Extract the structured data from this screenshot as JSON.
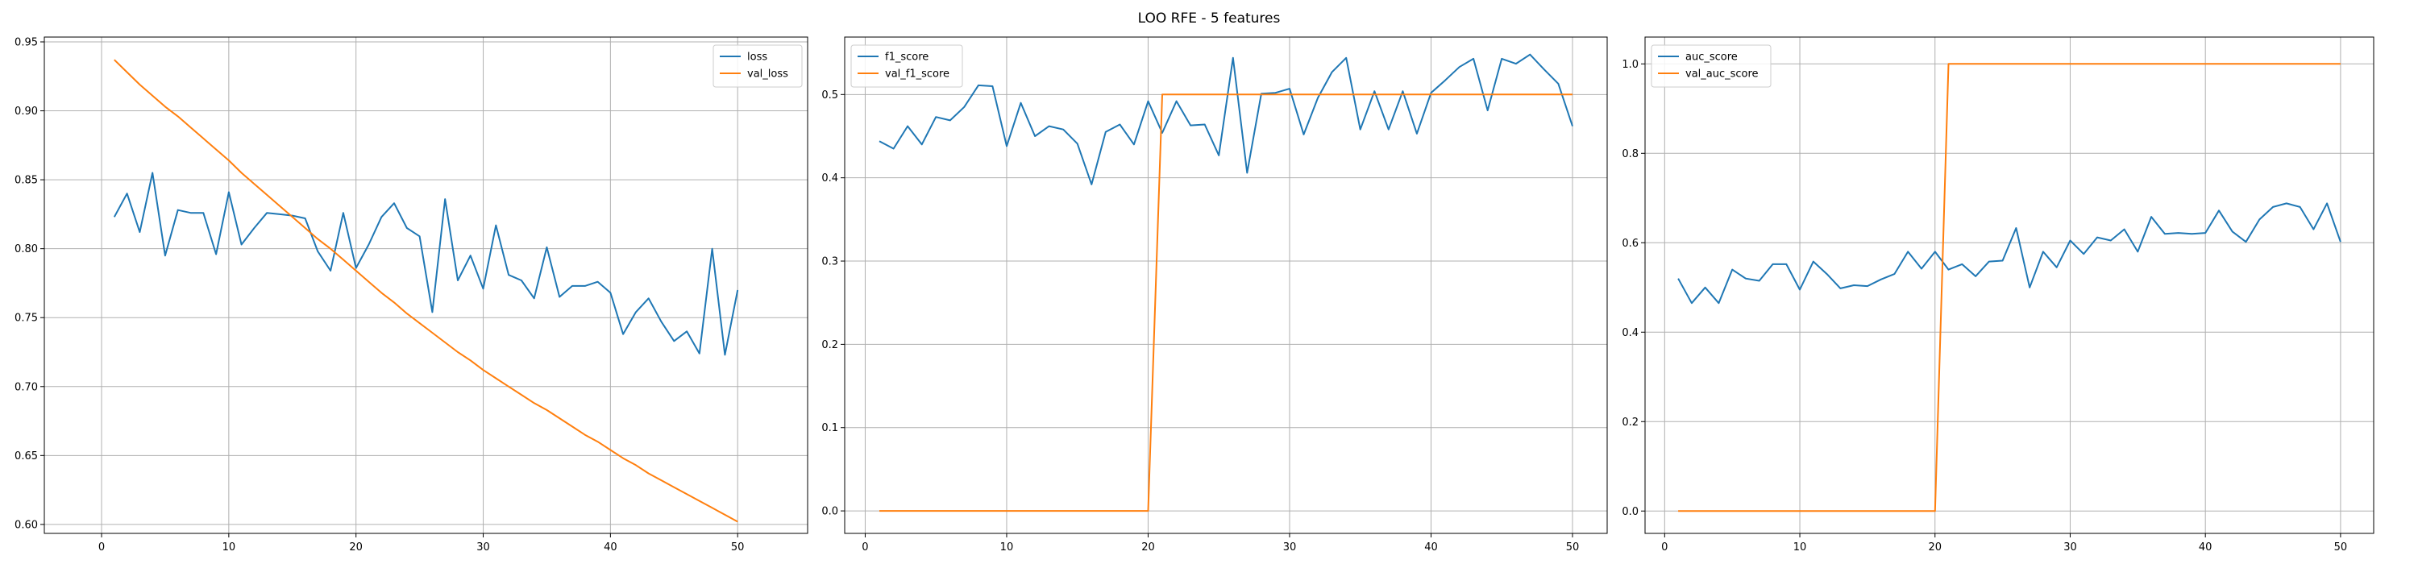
{
  "figure": {
    "title": "LOO RFE - 5 features",
    "colors": {
      "series1": "#1f77b4",
      "series2": "#ff7f0e"
    }
  },
  "chart_data": [
    {
      "type": "line",
      "x": [
        1,
        2,
        3,
        4,
        5,
        6,
        7,
        8,
        9,
        10,
        11,
        12,
        13,
        14,
        15,
        16,
        17,
        18,
        19,
        20,
        21,
        22,
        23,
        24,
        25,
        26,
        27,
        28,
        29,
        30,
        31,
        32,
        33,
        34,
        35,
        36,
        37,
        38,
        39,
        40,
        41,
        42,
        43,
        44,
        45,
        46,
        47,
        48,
        49,
        50
      ],
      "xlim": [
        -4.5,
        55.5
      ],
      "xticks": [
        0,
        10,
        20,
        30,
        40,
        50
      ],
      "ylim": [
        0.5935,
        0.9535
      ],
      "yticks": [
        0.6,
        0.65,
        0.7,
        0.75,
        0.8,
        0.85,
        0.9,
        0.95
      ],
      "ytick_labels": [
        "0.60",
        "0.65",
        "0.70",
        "0.75",
        "0.80",
        "0.85",
        "0.90",
        "0.95"
      ],
      "grid": true,
      "legend": "top-right",
      "series": [
        {
          "name": "loss",
          "color": "#1f77b4",
          "values": [
            0.823,
            0.84,
            0.812,
            0.855,
            0.795,
            0.828,
            0.826,
            0.826,
            0.796,
            0.841,
            0.803,
            0.815,
            0.826,
            0.825,
            0.824,
            0.822,
            0.798,
            0.784,
            0.826,
            0.786,
            0.803,
            0.823,
            0.833,
            0.815,
            0.809,
            0.754,
            0.836,
            0.777,
            0.795,
            0.771,
            0.817,
            0.781,
            0.777,
            0.764,
            0.801,
            0.765,
            0.773,
            0.773,
            0.776,
            0.768,
            0.738,
            0.754,
            0.764,
            0.747,
            0.733,
            0.74,
            0.724,
            0.8,
            0.723,
            0.77
          ]
        },
        {
          "name": "val_loss",
          "color": "#ff7f0e",
          "values": [
            0.937,
            0.928,
            0.919,
            0.911,
            0.903,
            0.896,
            0.888,
            0.88,
            0.872,
            0.864,
            0.855,
            0.847,
            0.839,
            0.831,
            0.823,
            0.815,
            0.807,
            0.8,
            0.792,
            0.784,
            0.776,
            0.768,
            0.761,
            0.753,
            0.746,
            0.739,
            0.732,
            0.725,
            0.719,
            0.712,
            0.706,
            0.7,
            0.694,
            0.688,
            0.683,
            0.677,
            0.671,
            0.665,
            0.66,
            0.654,
            0.648,
            0.643,
            0.637,
            0.632,
            0.627,
            0.622,
            0.617,
            0.612,
            0.607,
            0.602
          ]
        }
      ]
    },
    {
      "type": "line",
      "x": [
        1,
        2,
        3,
        4,
        5,
        6,
        7,
        8,
        9,
        10,
        11,
        12,
        13,
        14,
        15,
        16,
        17,
        18,
        19,
        20,
        21,
        22,
        23,
        24,
        25,
        26,
        27,
        28,
        29,
        30,
        31,
        32,
        33,
        34,
        35,
        36,
        37,
        38,
        39,
        40,
        41,
        42,
        43,
        44,
        45,
        46,
        47,
        48,
        49,
        50
      ],
      "xlim": [
        -1.45,
        52.45
      ],
      "xticks": [
        0,
        10,
        20,
        30,
        40,
        50
      ],
      "ylim": [
        -0.027,
        0.569
      ],
      "yticks": [
        0.0,
        0.1,
        0.2,
        0.3,
        0.4,
        0.5
      ],
      "ytick_labels": [
        "0.0",
        "0.1",
        "0.2",
        "0.3",
        "0.4",
        "0.5"
      ],
      "grid": true,
      "legend": "top-left",
      "series": [
        {
          "name": "f1_score",
          "color": "#1f77b4",
          "values": [
            0.444,
            0.435,
            0.462,
            0.44,
            0.473,
            0.469,
            0.485,
            0.511,
            0.51,
            0.438,
            0.49,
            0.45,
            0.462,
            0.458,
            0.441,
            0.392,
            0.455,
            0.464,
            0.44,
            0.492,
            0.454,
            0.492,
            0.463,
            0.464,
            0.427,
            0.544,
            0.406,
            0.501,
            0.502,
            0.507,
            0.452,
            0.496,
            0.527,
            0.544,
            0.458,
            0.504,
            0.458,
            0.504,
            0.453,
            0.502,
            0.517,
            0.533,
            0.543,
            0.481,
            0.543,
            0.537,
            0.548,
            0.53,
            0.513,
            0.462
          ]
        },
        {
          "name": "val_f1_score",
          "color": "#ff7f0e",
          "values": [
            0.0,
            0.0,
            0.0,
            0.0,
            0.0,
            0.0,
            0.0,
            0.0,
            0.0,
            0.0,
            0.0,
            0.0,
            0.0,
            0.0,
            0.0,
            0.0,
            0.0,
            0.0,
            0.0,
            0.0,
            0.5,
            0.5,
            0.5,
            0.5,
            0.5,
            0.5,
            0.5,
            0.5,
            0.5,
            0.5,
            0.5,
            0.5,
            0.5,
            0.5,
            0.5,
            0.5,
            0.5,
            0.5,
            0.5,
            0.5,
            0.5,
            0.5,
            0.5,
            0.5,
            0.5,
            0.5,
            0.5,
            0.5,
            0.5,
            0.5
          ]
        }
      ]
    },
    {
      "type": "line",
      "x": [
        1,
        2,
        3,
        4,
        5,
        6,
        7,
        8,
        9,
        10,
        11,
        12,
        13,
        14,
        15,
        16,
        17,
        18,
        19,
        20,
        21,
        22,
        23,
        24,
        25,
        26,
        27,
        28,
        29,
        30,
        31,
        32,
        33,
        34,
        35,
        36,
        37,
        38,
        39,
        40,
        41,
        42,
        43,
        44,
        45,
        46,
        47,
        48,
        49,
        50
      ],
      "xlim": [
        -1.45,
        52.45
      ],
      "xticks": [
        0,
        10,
        20,
        30,
        40,
        50
      ],
      "ylim": [
        -0.05,
        1.06
      ],
      "yticks": [
        0.0,
        0.2,
        0.4,
        0.6,
        0.8,
        1.0
      ],
      "ytick_labels": [
        "0.0",
        "0.2",
        "0.4",
        "0.6",
        "0.8",
        "1.0"
      ],
      "grid": true,
      "legend": "top-left",
      "series": [
        {
          "name": "auc_score",
          "color": "#1f77b4",
          "values": [
            0.52,
            0.465,
            0.5,
            0.465,
            0.54,
            0.52,
            0.515,
            0.552,
            0.552,
            0.495,
            0.558,
            0.53,
            0.498,
            0.505,
            0.503,
            0.518,
            0.53,
            0.58,
            0.542,
            0.58,
            0.54,
            0.552,
            0.525,
            0.558,
            0.56,
            0.633,
            0.5,
            0.58,
            0.545,
            0.605,
            0.575,
            0.612,
            0.605,
            0.63,
            0.58,
            0.658,
            0.62,
            0.622,
            0.62,
            0.622,
            0.672,
            0.625,
            0.602,
            0.652,
            0.68,
            0.688,
            0.68,
            0.63,
            0.688,
            0.602
          ]
        },
        {
          "name": "val_auc_score",
          "color": "#ff7f0e",
          "values": [
            0.0,
            0.0,
            0.0,
            0.0,
            0.0,
            0.0,
            0.0,
            0.0,
            0.0,
            0.0,
            0.0,
            0.0,
            0.0,
            0.0,
            0.0,
            0.0,
            0.0,
            0.0,
            0.0,
            0.0,
            1.0,
            1.0,
            1.0,
            1.0,
            1.0,
            1.0,
            1.0,
            1.0,
            1.0,
            1.0,
            1.0,
            1.0,
            1.0,
            1.0,
            1.0,
            1.0,
            1.0,
            1.0,
            1.0,
            1.0,
            1.0,
            1.0,
            1.0,
            1.0,
            1.0,
            1.0,
            1.0,
            1.0,
            1.0,
            1.0
          ]
        }
      ]
    }
  ]
}
